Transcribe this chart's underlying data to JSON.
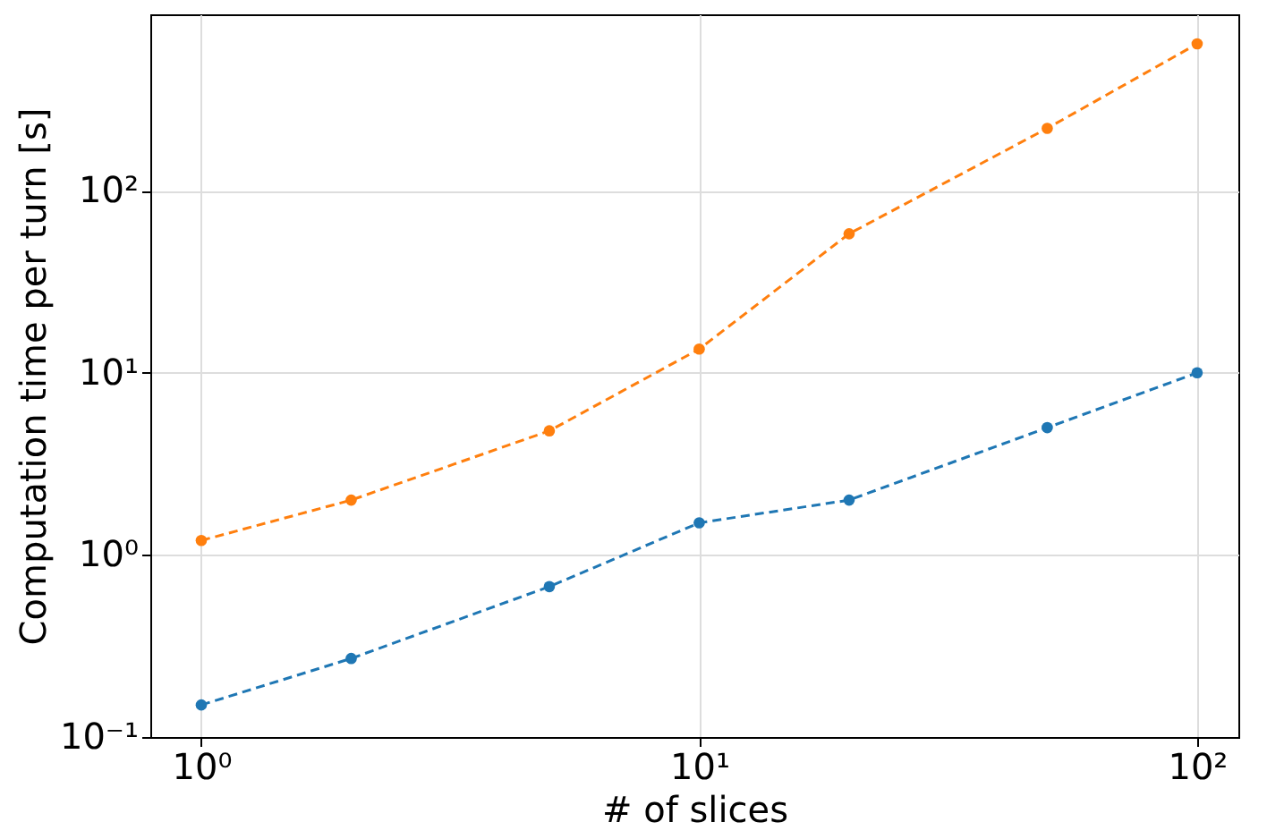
{
  "chart_data": {
    "type": "line",
    "xlabel": "# of slices",
    "ylabel": "Computation time per turn [s]",
    "x": [
      1,
      2,
      5,
      10,
      20,
      50,
      100
    ],
    "series": [
      {
        "color": "#1f77b4",
        "values": [
          0.15,
          0.27,
          0.67,
          1.5,
          2,
          5,
          10
        ]
      },
      {
        "color": "#ff7f0e",
        "values": [
          1.2,
          2,
          4.8,
          13.5,
          58,
          220,
          640
        ]
      }
    ],
    "log": "xy",
    "xlim": [
      0.79,
      121
    ],
    "ylim": [
      0.1,
      930
    ],
    "xticks": [
      {
        "value": 1,
        "label": "10⁰"
      },
      {
        "value": 10,
        "label": "10¹"
      },
      {
        "value": 100,
        "label": "10²"
      }
    ],
    "yticks": [
      {
        "value": 0.1,
        "label": "10⁻¹"
      },
      {
        "value": 1,
        "label": "10⁰"
      },
      {
        "value": 10,
        "label": "10¹"
      },
      {
        "value": 100,
        "label": "10²"
      }
    ],
    "grid": true,
    "marker": "circle",
    "line_style": "dashed"
  }
}
